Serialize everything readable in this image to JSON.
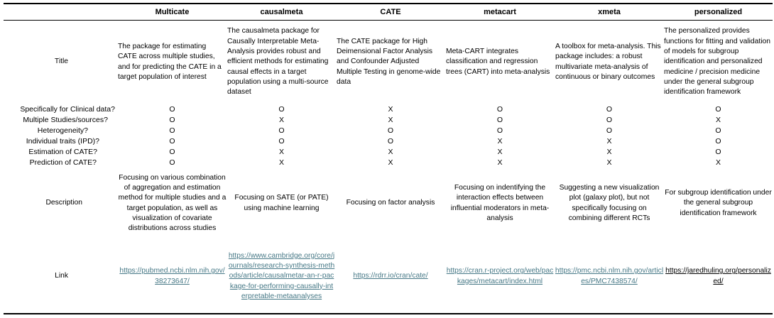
{
  "columns": [
    "Multicate",
    "causalmeta",
    "CATE",
    "metacart",
    "xmeta",
    "personalized"
  ],
  "row_labels": {
    "title": "Title",
    "description": "Description",
    "link": "Link"
  },
  "titles": [
    "The package for estimating CATE across multiple studies, and for predicting the CATE in a target population of interest",
    "The causalmeta package for Causally Interpretable Meta-Analysis provides robust and efficient methods for estimating causal effects in a target population using a multi-source dataset",
    "The CATE package for High Deimensional Factor Analysis and Confounder Adjusted Multiple Testing in genome-wide data",
    "Meta-CART integrates classification and regression trees (CART) into meta-analysis",
    "A toolbox for meta-analysis. This package includes: a robust multivariate meta-analysis of continuous or binary outcomes",
    "The personalized provides functions for fitting and validation of models for subgroup identification and personalized medicine / precision medicine under the general subgroup identification framework"
  ],
  "questions": [
    {
      "label": "Specifically for Clinical data?",
      "values": [
        "O",
        "O",
        "X",
        "O",
        "O",
        "O"
      ]
    },
    {
      "label": "Multiple Studies/sources?",
      "values": [
        "O",
        "X",
        "X",
        "O",
        "O",
        "X"
      ]
    },
    {
      "label": "Heterogeneity?",
      "values": [
        "O",
        "O",
        "O",
        "O",
        "O",
        "O"
      ]
    },
    {
      "label": "Individual traits (IPD)?",
      "values": [
        "O",
        "O",
        "O",
        "X",
        "X",
        "O"
      ]
    },
    {
      "label": "Estimation of CATE?",
      "values": [
        "O",
        "X",
        "X",
        "X",
        "X",
        "O"
      ]
    },
    {
      "label": "Prediction of CATE?",
      "values": [
        "O",
        "X",
        "X",
        "X",
        "X",
        "X"
      ]
    }
  ],
  "descriptions": [
    "Focusing on various combination of aggregation and estimation method for multiple studies and a target population, as well as visualization of covariate distributions across studies",
    "Focusing on SATE (or PATE) using machine learning",
    "Focusing on factor analysis",
    "Focusing on indentifying the interaction effects between influential moderators in meta-analysis",
    "Suggesting a new visualization plot (galaxy plot), but not specifically focusing on combining different RCTs",
    "For subgroup identification under the general subgroup identification framework"
  ],
  "links": [
    "https://pubmed.ncbi.nlm.nih.gov/38273647/",
    "https://www.cambridge.org/core/journals/research-synthesis-methods/article/causalmetar-an-r-package-for-performing-causally-interpretable-metaanalyses",
    "https://rdrr.io/cran/cate/",
    "https://cran.r-project.org/web/packages/metacart/index.html",
    "https://pmc.ncbi.nlm.nih.gov/articles/PMC7438574/",
    "https://jaredhuling.org/personalized/"
  ],
  "colors": {
    "link": "#467886",
    "text": "#000000",
    "rule": "#000000"
  }
}
